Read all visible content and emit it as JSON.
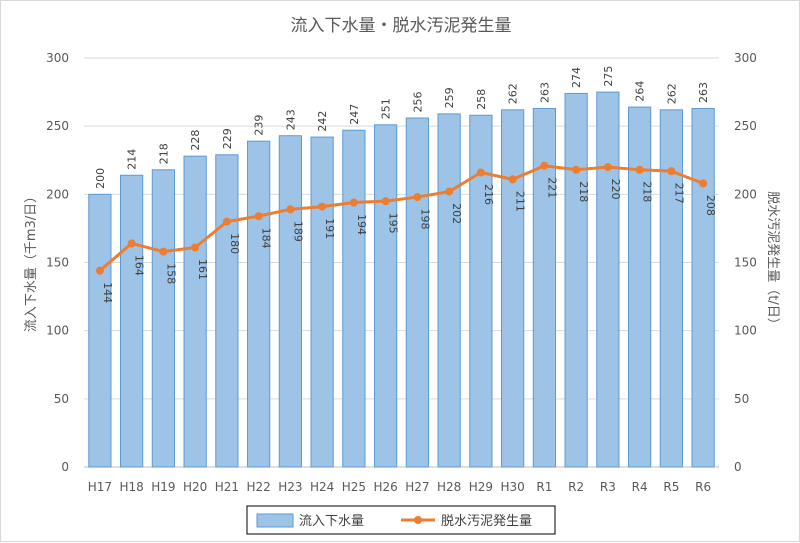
{
  "chart_data": {
    "type": "bar",
    "title": "流入下水量・脱水汚泥発生量",
    "ylabel_left": "流入下水量（千m3/日）",
    "ylabel_right": "脱水汚泥発生量（t/日）",
    "ylim_left": [
      0,
      300
    ],
    "ylim_right": [
      0,
      300
    ],
    "yticks": [
      0,
      50,
      100,
      150,
      200,
      250,
      300
    ],
    "grid": true,
    "legend_position": "bottom",
    "categories": [
      "H17",
      "H18",
      "H19",
      "H20",
      "H21",
      "H22",
      "H23",
      "H24",
      "H25",
      "H26",
      "H27",
      "H28",
      "H29",
      "H30",
      "R1",
      "R2",
      "R3",
      "R4",
      "R5",
      "R6"
    ],
    "series": [
      {
        "name": "流入下水量",
        "type": "bar",
        "axis": "left",
        "color": "#9dc3e6",
        "values": [
          200,
          214,
          218,
          228,
          229,
          239,
          243,
          242,
          247,
          251,
          256,
          259,
          258,
          262,
          263,
          274,
          275,
          264,
          262,
          263
        ]
      },
      {
        "name": "脱水汚泥発生量",
        "type": "line",
        "axis": "right",
        "color": "#ed7d31",
        "values": [
          144,
          164,
          158,
          161,
          180,
          184,
          189,
          191,
          194,
          195,
          198,
          202,
          216,
          211,
          221,
          218,
          220,
          218,
          217,
          208
        ]
      }
    ]
  }
}
